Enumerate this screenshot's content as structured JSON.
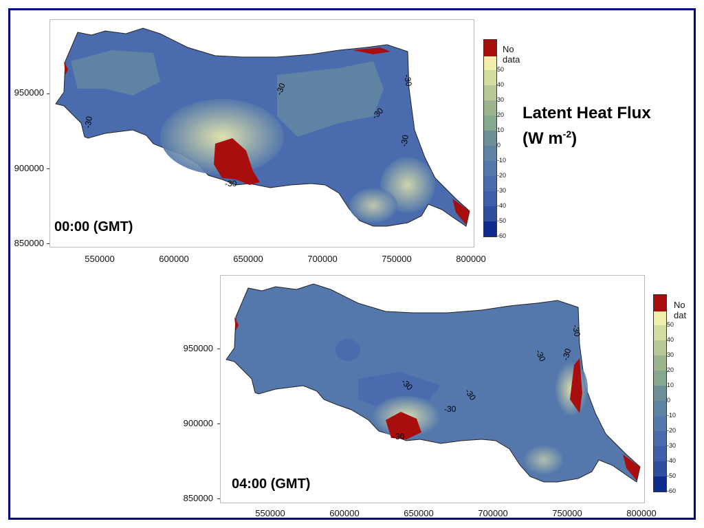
{
  "title": {
    "line1": "Latent Heat Flux",
    "line2_prefix": "(W m",
    "line2_sup": "-2",
    "line2_suffix": ")"
  },
  "x_ticks": [
    "550000",
    "600000",
    "650000",
    "700000",
    "750000",
    "800000"
  ],
  "y_ticks": [
    "950000",
    "900000",
    "850000"
  ],
  "colorbar": {
    "nodata_label": "No data",
    "nodata_label_clipped": "No dat",
    "labels": [
      "50",
      "40",
      "30",
      "20",
      "10",
      "0",
      "-10",
      "-20",
      "-30",
      "-40",
      "-50",
      "-60"
    ],
    "colors": [
      "#f0efac",
      "#d4dc9f",
      "#b8c896",
      "#9cb58f",
      "#86a88e",
      "#6e8f95",
      "#5f84a3",
      "#5478ab",
      "#4a6cae",
      "#3d5ea8",
      "#2e4ea0",
      "#1b3b95",
      "#0d2b8a"
    ],
    "nodata_color": "#a80e0e"
  },
  "panels": [
    {
      "time_label": "00:00 (GMT)",
      "contour_labels": [
        "-30",
        "-30",
        "-30",
        "-30",
        "-30",
        "-30"
      ]
    },
    {
      "time_label": "04:00 (GMT)",
      "contour_labels": [
        "-30",
        "-30",
        "-30",
        "-30",
        "-30",
        "-30",
        "-30"
      ]
    }
  ]
}
